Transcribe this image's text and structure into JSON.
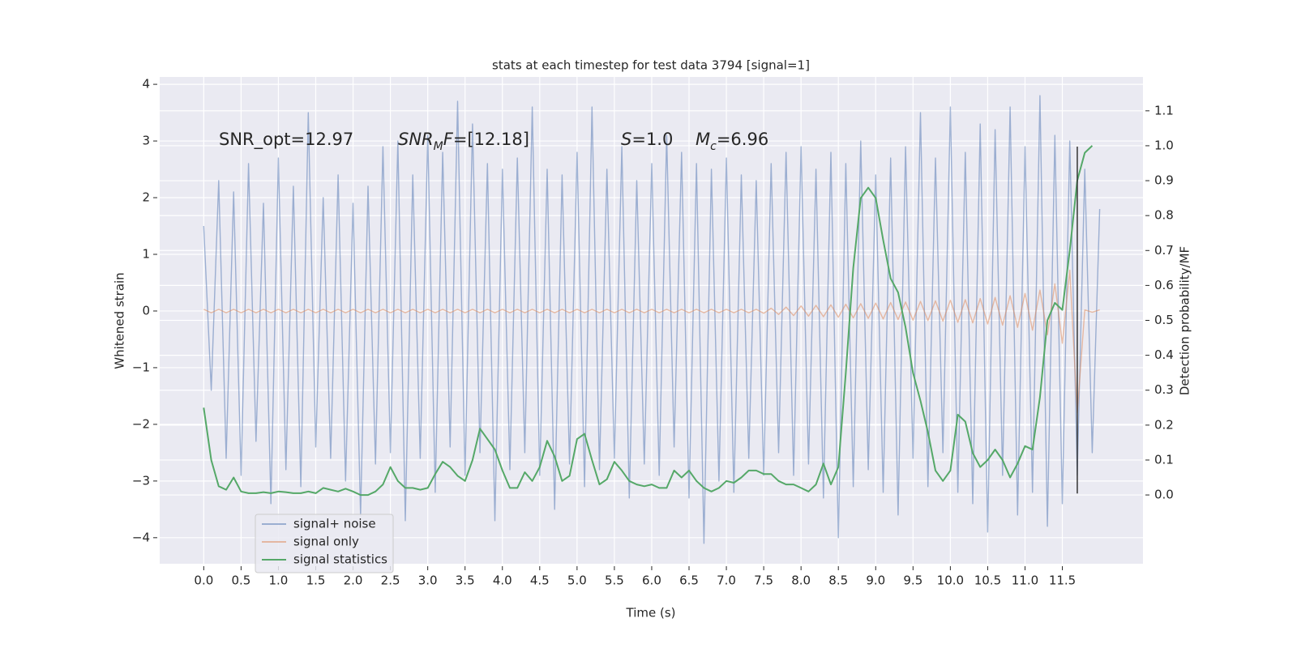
{
  "chart_data": {
    "type": "line",
    "title": "stats at each timestep for test data 3794 [signal=1]",
    "x_label": "Time (s)",
    "y_label": "Whitened strain",
    "y2_label": "Detection probability/MF",
    "x": [
      0,
      0.1,
      0.2,
      0.3,
      0.4,
      0.5,
      0.6,
      0.7,
      0.8,
      0.9,
      1,
      1.1,
      1.2,
      1.3,
      1.4,
      1.5,
      1.6,
      1.7,
      1.8,
      1.9,
      2,
      2.1,
      2.2,
      2.3,
      2.4,
      2.5,
      2.6,
      2.7,
      2.8,
      2.9,
      3,
      3.1,
      3.2,
      3.3,
      3.4,
      3.5,
      3.6,
      3.7,
      3.8,
      3.9,
      4,
      4.1,
      4.2,
      4.3,
      4.4,
      4.5,
      4.6,
      4.7,
      4.8,
      4.9,
      5,
      5.1,
      5.2,
      5.3,
      5.4,
      5.5,
      5.6,
      5.7,
      5.8,
      5.9,
      6,
      6.1,
      6.2,
      6.3,
      6.4,
      6.5,
      6.6,
      6.7,
      6.8,
      6.9,
      7,
      7.1,
      7.2,
      7.3,
      7.4,
      7.5,
      7.6,
      7.7,
      7.8,
      7.9,
      8,
      8.1,
      8.2,
      8.3,
      8.4,
      8.5,
      8.6,
      8.7,
      8.8,
      8.9,
      9,
      9.1,
      9.2,
      9.3,
      9.4,
      9.5,
      9.6,
      9.7,
      9.8,
      9.9,
      10,
      10.1,
      10.2,
      10.3,
      10.4,
      10.5,
      10.6,
      10.7,
      10.8,
      10.9,
      11,
      11.1,
      11.2,
      11.3,
      11.4,
      11.5,
      11.6,
      11.7,
      11.8,
      11.9,
      12
    ],
    "series": [
      {
        "name": "signal+ noise",
        "color": "#4c72b0",
        "values": [
          1.5,
          -1.4,
          2.3,
          -2.6,
          2.1,
          -2.9,
          2.6,
          -2.3,
          1.9,
          -3.4,
          2.7,
          -2.8,
          2.2,
          -3.1,
          3.5,
          -2.4,
          2.0,
          -2.6,
          2.4,
          -3.0,
          1.9,
          -3.6,
          2.2,
          -2.7,
          2.9,
          -2.5,
          3.0,
          -3.7,
          2.4,
          -2.6,
          3.1,
          -3.2,
          2.8,
          -2.4,
          3.7,
          -2.9,
          3.3,
          -2.5,
          2.6,
          -3.7,
          2.5,
          -2.8,
          2.7,
          -2.5,
          3.6,
          -2.9,
          2.5,
          -3.5,
          2.4,
          -2.7,
          2.8,
          -3.1,
          3.6,
          -2.8,
          2.5,
          -2.6,
          2.9,
          -3.3,
          2.3,
          -2.7,
          2.6,
          -2.9,
          3.1,
          -2.4,
          2.8,
          -3.3,
          2.6,
          -4.1,
          2.5,
          -3.0,
          2.7,
          -3.2,
          2.4,
          -2.6,
          2.3,
          -2.9,
          2.6,
          -2.5,
          2.8,
          -2.9,
          2.9,
          -2.7,
          2.5,
          -3.3,
          2.8,
          -4.0,
          2.6,
          -3.1,
          3.0,
          -2.8,
          2.4,
          -3.2,
          2.7,
          -3.6,
          2.9,
          -2.6,
          3.5,
          -3.1,
          2.7,
          -2.5,
          3.6,
          -3.2,
          2.8,
          -3.4,
          3.3,
          -3.9,
          3.2,
          -2.9,
          3.6,
          -3.6,
          2.9,
          -3.2,
          3.8,
          -3.8,
          3.1,
          -3.4,
          3.0,
          -2.9,
          2.5,
          -2.5,
          1.8
        ]
      },
      {
        "name": "signal only",
        "color": "#dd8452",
        "values": [
          0.03,
          -0.03,
          0.03,
          -0.03,
          0.03,
          -0.03,
          0.03,
          -0.03,
          0.03,
          -0.03,
          0.03,
          -0.03,
          0.03,
          -0.03,
          0.03,
          -0.03,
          0.03,
          -0.03,
          0.03,
          -0.03,
          0.03,
          -0.03,
          0.03,
          -0.03,
          0.03,
          -0.03,
          0.03,
          -0.03,
          0.03,
          -0.03,
          0.03,
          -0.03,
          0.03,
          -0.03,
          0.03,
          -0.03,
          0.03,
          -0.03,
          0.03,
          -0.03,
          0.03,
          -0.03,
          0.03,
          -0.03,
          0.03,
          -0.03,
          0.03,
          -0.03,
          0.03,
          -0.03,
          0.03,
          -0.03,
          0.03,
          -0.03,
          0.03,
          -0.03,
          0.03,
          -0.03,
          0.03,
          -0.03,
          0.03,
          -0.03,
          0.03,
          -0.03,
          0.03,
          -0.03,
          0.03,
          -0.03,
          0.03,
          -0.03,
          0.03,
          -0.03,
          0.03,
          -0.03,
          0.03,
          -0.04,
          0.05,
          -0.06,
          0.07,
          -0.08,
          0.09,
          -0.09,
          0.1,
          -0.1,
          0.11,
          -0.11,
          0.12,
          -0.12,
          0.13,
          -0.13,
          0.14,
          -0.14,
          0.15,
          -0.15,
          0.16,
          -0.16,
          0.17,
          -0.17,
          0.18,
          -0.18,
          0.19,
          -0.2,
          0.2,
          -0.21,
          0.22,
          -0.23,
          0.24,
          -0.25,
          0.27,
          -0.29,
          0.31,
          -0.34,
          0.37,
          -0.42,
          0.48,
          -0.57,
          0.72,
          -1.8,
          0.02,
          -0.02,
          0.02
        ]
      },
      {
        "name": "signal statistics",
        "color": "#55a868",
        "axis": "y2",
        "values": [
          0.25,
          0.1,
          0.025,
          0.015,
          0.05,
          0.01,
          0.005,
          0.005,
          0.008,
          0.005,
          0.01,
          0.008,
          0.005,
          0.005,
          0.01,
          0.005,
          0.02,
          0.015,
          0.01,
          0.018,
          0.01,
          0.0,
          0.0,
          0.01,
          0.03,
          0.08,
          0.04,
          0.02,
          0.02,
          0.015,
          0.02,
          0.06,
          0.095,
          0.08,
          0.055,
          0.04,
          0.1,
          0.19,
          0.16,
          0.13,
          0.07,
          0.02,
          0.02,
          0.065,
          0.04,
          0.08,
          0.155,
          0.11,
          0.04,
          0.055,
          0.16,
          0.175,
          0.1,
          0.03,
          0.045,
          0.095,
          0.07,
          0.04,
          0.03,
          0.025,
          0.03,
          0.02,
          0.02,
          0.07,
          0.05,
          0.07,
          0.04,
          0.02,
          0.01,
          0.02,
          0.04,
          0.035,
          0.05,
          0.07,
          0.07,
          0.06,
          0.06,
          0.04,
          0.03,
          0.03,
          0.02,
          0.01,
          0.03,
          0.09,
          0.03,
          0.08,
          0.35,
          0.65,
          0.85,
          0.88,
          0.85,
          0.73,
          0.62,
          0.58,
          0.48,
          0.35,
          0.27,
          0.18,
          0.07,
          0.04,
          0.07,
          0.23,
          0.21,
          0.12,
          0.08,
          0.1,
          0.13,
          0.1,
          0.05,
          0.09,
          0.14,
          0.13,
          0.28,
          0.5,
          0.55,
          0.53,
          0.7,
          0.9,
          0.98,
          1.0,
          null
        ]
      }
    ],
    "vline": {
      "x": 11.7,
      "ymin": -3.22,
      "ymax": 2.9,
      "color": "#333333"
    },
    "annotations": [
      [
        {
          "text": "SNR_opt=12.97"
        }
      ],
      [
        {
          "text": "SNR",
          "italic": true
        },
        {
          "text": "M",
          "italic": true,
          "sub": true
        },
        {
          "text": "F",
          "italic": true
        },
        {
          "text": "=[12.18]"
        }
      ],
      [
        {
          "text": "S",
          "italic": true
        },
        {
          "text": "=1.0"
        }
      ],
      [
        {
          "text": "M",
          "italic": true
        },
        {
          "text": "c",
          "italic": true,
          "sub": true
        },
        {
          "text": "=6.96"
        }
      ]
    ],
    "xlim": [
      -0.59,
      12.58
    ],
    "ylim": [
      -4.46,
      4.13
    ],
    "y2lim": [
      -0.197,
      1.197
    ],
    "xticks": [
      {
        "value": 0,
        "label": "0.0"
      },
      0.5,
      {
        "value": 1,
        "label": "1.0"
      },
      1.5,
      {
        "value": 2,
        "label": "2.0"
      },
      2.5,
      {
        "value": 3,
        "label": "3.0"
      },
      3.5,
      {
        "value": 4,
        "label": "4.0"
      },
      4.5,
      {
        "value": 5,
        "label": "5.0"
      },
      5.5,
      {
        "value": 6,
        "label": "6.0"
      },
      6.5,
      {
        "value": 7,
        "label": "7.0"
      },
      7.5,
      {
        "value": 8,
        "label": "8.0"
      },
      8.5,
      {
        "value": 9,
        "label": "9.0"
      },
      9.5,
      {
        "value": 10,
        "label": "10.0"
      },
      10.5,
      {
        "value": 11,
        "label": "11.0"
      },
      11.5
    ],
    "yticks": [
      {
        "value": -4,
        "label": "−4"
      },
      {
        "value": -3,
        "label": "−3"
      },
      {
        "value": -2,
        "label": "−2"
      },
      {
        "value": -1,
        "label": "−1"
      },
      0,
      1,
      2,
      3,
      4
    ],
    "y2ticks": [
      {
        "value": 0,
        "label": "0.0"
      },
      0.1,
      0.2,
      0.3,
      0.4,
      0.5,
      0.6,
      0.7,
      0.8,
      0.9,
      {
        "value": 1,
        "label": "1.0"
      },
      1.1
    ],
    "grid": true,
    "legend": "lower left",
    "background": "#eaeaf2"
  }
}
